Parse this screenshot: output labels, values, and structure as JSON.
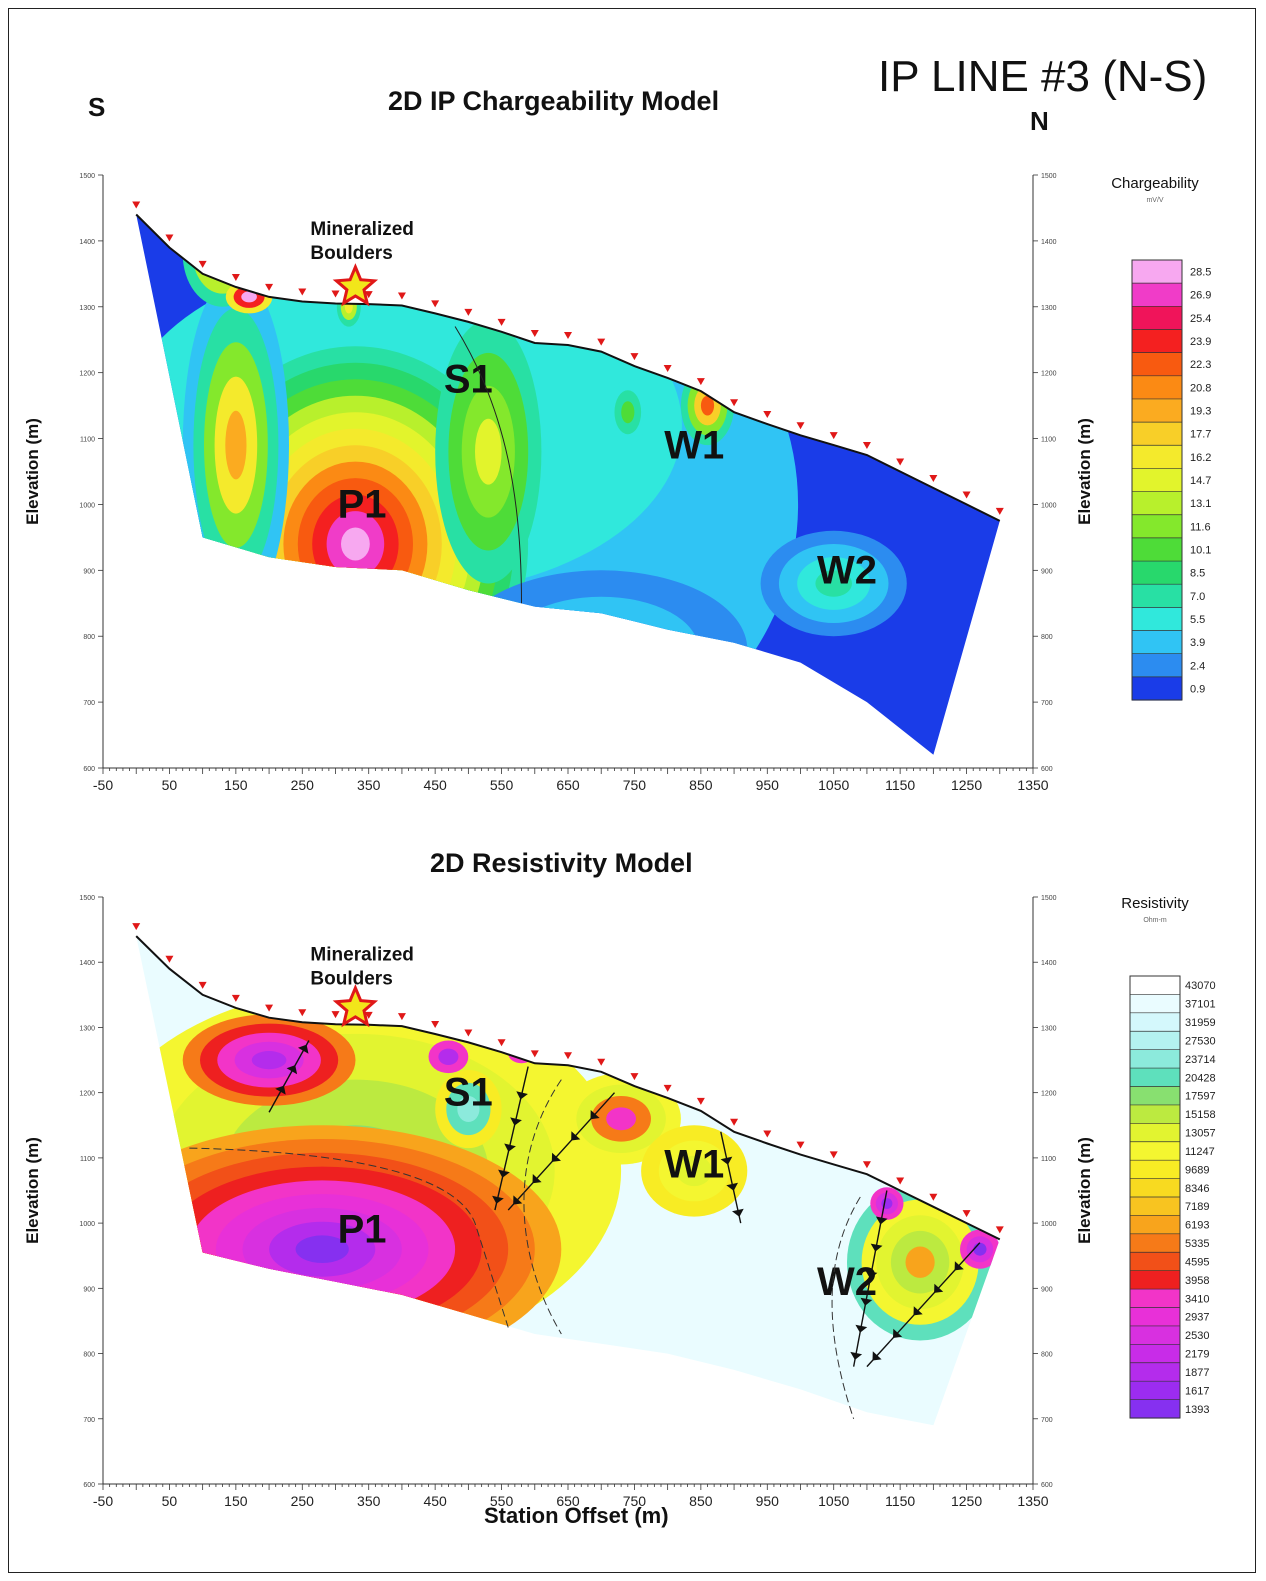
{
  "header": {
    "line_title": "IP LINE #3 (N-S)",
    "south_label": "S",
    "north_label": "N"
  },
  "chart_data": [
    {
      "type": "heatmap",
      "title": "2D IP Chargeability Model",
      "xlabel": "",
      "ylabel": "Elevation (m)",
      "x_ticks": [
        -50,
        50,
        150,
        250,
        350,
        450,
        550,
        650,
        750,
        850,
        950,
        1050,
        1150,
        1250,
        1350
      ],
      "y_ticks": [
        600,
        700,
        800,
        900,
        1000,
        1100,
        1200,
        1300,
        1400,
        1500
      ],
      "xlim": [
        -50,
        1350
      ],
      "ylim": [
        600,
        1500
      ],
      "legend": {
        "title": "Chargeability",
        "unit": "mV/V",
        "levels": [
          "28.5",
          "26.9",
          "25.4",
          "23.9",
          "22.3",
          "20.8",
          "19.3",
          "17.7",
          "16.2",
          "14.7",
          "13.1",
          "11.6",
          "10.1",
          "8.5",
          "7.0",
          "5.5",
          "3.9",
          "2.4",
          "0.9"
        ],
        "colors": [
          "#f7a8f0",
          "#f03cc8",
          "#f0145a",
          "#f42020",
          "#f85a10",
          "#fb8a14",
          "#fbab20",
          "#f8cf28",
          "#f4ea2c",
          "#e2f42c",
          "#b8f02c",
          "#84e82c",
          "#4edc38",
          "#28d86c",
          "#28e0a4",
          "#30e8dc",
          "#30c4f4",
          "#2c8cf0",
          "#1a3ce8"
        ]
      },
      "topography": [
        [
          0,
          1440
        ],
        [
          50,
          1390
        ],
        [
          100,
          1350
        ],
        [
          150,
          1330
        ],
        [
          200,
          1315
        ],
        [
          250,
          1308
        ],
        [
          300,
          1305
        ],
        [
          350,
          1304
        ],
        [
          400,
          1302
        ],
        [
          450,
          1290
        ],
        [
          500,
          1277
        ],
        [
          550,
          1262
        ],
        [
          600,
          1245
        ],
        [
          650,
          1242
        ],
        [
          700,
          1232
        ],
        [
          750,
          1210
        ],
        [
          800,
          1192
        ],
        [
          850,
          1172
        ],
        [
          900,
          1140
        ],
        [
          950,
          1122
        ],
        [
          1000,
          1105
        ],
        [
          1050,
          1090
        ],
        [
          1100,
          1075
        ],
        [
          1150,
          1050
        ],
        [
          1200,
          1025
        ],
        [
          1250,
          1000
        ],
        [
          1300,
          975
        ]
      ],
      "annotations": [
        {
          "label": "P1",
          "x": 340,
          "y": 980
        },
        {
          "label": "S1",
          "x": 500,
          "y": 1170
        },
        {
          "label": "W1",
          "x": 840,
          "y": 1070
        },
        {
          "label": "W2",
          "x": 1070,
          "y": 880
        },
        {
          "label": "Mineralized\nBoulders",
          "x": 330,
          "y": 1360
        }
      ],
      "star_marker": {
        "x": 330,
        "y": 1330
      }
    },
    {
      "type": "heatmap",
      "title": "2D Resistivity Model",
      "xlabel": "Station Offset (m)",
      "ylabel": "Elevation (m)",
      "x_ticks": [
        -50,
        50,
        150,
        250,
        350,
        450,
        550,
        650,
        750,
        850,
        950,
        1050,
        1150,
        1250,
        1350
      ],
      "y_ticks": [
        600,
        700,
        800,
        900,
        1000,
        1100,
        1200,
        1300,
        1400,
        1500
      ],
      "xlim": [
        -50,
        1350
      ],
      "ylim": [
        600,
        1500
      ],
      "legend": {
        "title": "Resistivity",
        "unit": "Ohm-m",
        "levels": [
          "43070",
          "37101",
          "31959",
          "27530",
          "23714",
          "20428",
          "17597",
          "15158",
          "13057",
          "11247",
          "9689",
          "8346",
          "7189",
          "6193",
          "5335",
          "4595",
          "3958",
          "3410",
          "2937",
          "2530",
          "2179",
          "1877",
          "1617",
          "1393"
        ],
        "colors": [
          "#ffffff",
          "#eafcff",
          "#d4f8fc",
          "#b4f2f0",
          "#8ceadc",
          "#5ee0bc",
          "#88e070",
          "#bcea40",
          "#e2f430",
          "#f4f630",
          "#f8ec24",
          "#f8da20",
          "#f8c420",
          "#f8a41c",
          "#f67a18",
          "#f25018",
          "#ee2020",
          "#f234c8",
          "#e830d8",
          "#d830e0",
          "#c82ce8",
          "#b42cec",
          "#9c2cf0",
          "#8630f0"
        ]
      },
      "topography": [
        [
          0,
          1440
        ],
        [
          50,
          1390
        ],
        [
          100,
          1350
        ],
        [
          150,
          1330
        ],
        [
          200,
          1315
        ],
        [
          250,
          1308
        ],
        [
          300,
          1305
        ],
        [
          350,
          1304
        ],
        [
          400,
          1302
        ],
        [
          450,
          1290
        ],
        [
          500,
          1277
        ],
        [
          550,
          1262
        ],
        [
          600,
          1245
        ],
        [
          650,
          1242
        ],
        [
          700,
          1232
        ],
        [
          750,
          1210
        ],
        [
          800,
          1192
        ],
        [
          850,
          1172
        ],
        [
          900,
          1140
        ],
        [
          950,
          1122
        ],
        [
          1000,
          1105
        ],
        [
          1050,
          1090
        ],
        [
          1100,
          1075
        ],
        [
          1150,
          1050
        ],
        [
          1200,
          1025
        ],
        [
          1250,
          1000
        ],
        [
          1300,
          975
        ]
      ],
      "annotations": [
        {
          "label": "P1",
          "x": 340,
          "y": 970
        },
        {
          "label": "S1",
          "x": 500,
          "y": 1180
        },
        {
          "label": "W1",
          "x": 840,
          "y": 1070
        },
        {
          "label": "W2",
          "x": 1070,
          "y": 890
        },
        {
          "label": "Mineralized\nBoulders",
          "x": 330,
          "y": 1360
        }
      ],
      "star_marker": {
        "x": 330,
        "y": 1330
      }
    }
  ]
}
